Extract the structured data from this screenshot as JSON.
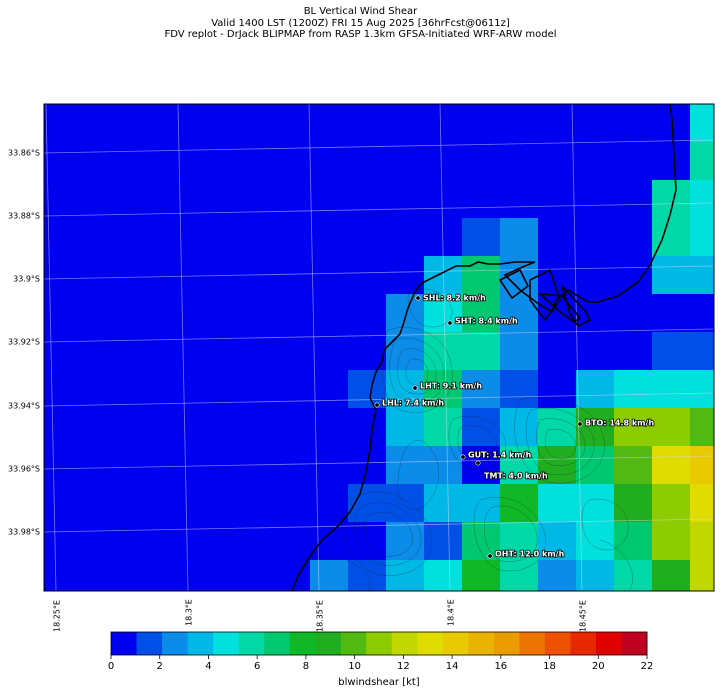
{
  "title": {
    "line1": "BL Vertical Wind Shear",
    "line2": "Valid 1400 LST (1200Z) FRI 15 Aug 2025 [36hrFcst@0611z]",
    "line3": "FDV replot - DrJack BLIPMAP from RASP 1.3km GFSA-Initiated WRF-ARW model"
  },
  "axes": {
    "lat_labels": [
      "33.86°S",
      "33.88°S",
      "33.9°S",
      "33.92°S",
      "33.94°S",
      "33.96°S",
      "33.98°S"
    ],
    "lon_labels": [
      "18.25°E",
      "18.3°E",
      "18.35°E",
      "18.4°E",
      "18.45°E"
    ]
  },
  "stations": [
    {
      "code": "SHL",
      "value": "8.2",
      "unit": "km/h",
      "label": "SHL: 8.2 km/h"
    },
    {
      "code": "SHT",
      "value": "8.4",
      "unit": "km/h",
      "label": "SHT: 8.4 km/h"
    },
    {
      "code": "LHT",
      "value": "9.1",
      "unit": "km/h",
      "label": "LHT: 9.1 km/h"
    },
    {
      "code": "LHL",
      "value": "7.4",
      "unit": "km/h",
      "label": "LHL: 7.4 km/h"
    },
    {
      "code": "BTO",
      "value": "14.8",
      "unit": "km/h",
      "label": "BTO: 14.8 km/h"
    },
    {
      "code": "GUT",
      "value": "1.4",
      "unit": "km/h",
      "label": "GUT: 1.4 km/h"
    },
    {
      "code": "TMT",
      "value": "4.0",
      "unit": "km/h",
      "label": "TMT: 4.0 km/h"
    },
    {
      "code": "OHT",
      "value": "12.0",
      "unit": "km/h",
      "label": "OHT: 12.0 km/h"
    }
  ],
  "colorbar": {
    "label": "blwindshear [kt]",
    "ticks": [
      "0",
      "2",
      "4",
      "6",
      "8",
      "10",
      "12",
      "14",
      "16",
      "18",
      "20",
      "22"
    ],
    "colors": [
      "#0000f0",
      "#0050e8",
      "#0a8ce8",
      "#00b8e6",
      "#00e0dc",
      "#00d8a8",
      "#00c870",
      "#10b828",
      "#20ae20",
      "#52b812",
      "#8ccc00",
      "#c0d800",
      "#e0dc00",
      "#e8ca00",
      "#e8b400",
      "#e89c00",
      "#ec7400",
      "#ee5200",
      "#e82800",
      "#e00000",
      "#c00020"
    ]
  },
  "chart_data": {
    "type": "heatmap",
    "variable": "blwindshear",
    "unit": "kt",
    "value_range": [
      0,
      22
    ],
    "lat_range": [
      "33.999°S",
      "33.848°S"
    ],
    "lon_range": [
      "18.246°E",
      "18.5°E"
    ],
    "grid_values": [
      [
        0,
        0,
        0,
        0,
        0,
        0,
        0,
        0,
        0,
        0,
        0,
        0,
        0,
        0,
        0,
        0,
        0,
        5,
        5
      ],
      [
        0,
        0,
        0,
        0,
        0,
        0,
        0,
        0,
        0,
        0,
        0,
        0,
        0,
        0,
        0,
        0,
        0,
        6,
        5
      ],
      [
        0,
        0,
        0,
        0,
        0,
        0,
        0,
        0,
        0,
        0,
        0,
        0,
        0,
        0,
        0,
        0,
        6,
        5,
        5
      ],
      [
        0,
        0,
        0,
        0,
        0,
        0,
        0,
        0,
        0,
        0,
        0,
        2,
        3,
        1,
        0,
        0,
        6,
        5,
        5
      ],
      [
        0,
        0,
        0,
        0,
        0,
        0,
        0,
        0,
        0,
        0,
        4,
        7,
        3,
        1,
        1,
        1,
        4,
        4,
        3
      ],
      [
        0,
        0,
        0,
        0,
        0,
        0,
        0,
        0,
        0,
        3,
        5,
        7,
        3,
        1,
        1,
        1,
        1,
        1,
        1
      ],
      [
        0,
        0,
        0,
        0,
        0,
        0,
        0,
        0,
        0,
        3,
        6,
        6,
        3,
        1,
        1,
        1,
        2,
        2,
        3
      ],
      [
        0,
        0,
        0,
        0,
        0,
        0,
        0,
        0,
        2,
        4,
        7,
        3,
        2,
        1,
        4,
        5,
        5,
        5,
        5
      ],
      [
        0,
        0,
        0,
        0,
        0,
        0,
        0,
        1,
        1,
        4,
        6,
        2,
        4,
        6,
        9,
        11,
        11,
        10,
        10
      ],
      [
        0,
        0,
        0,
        0,
        0,
        0,
        0,
        0,
        1,
        3,
        3,
        0,
        6,
        9,
        7,
        10,
        13,
        14,
        15
      ],
      [
        0,
        0,
        0,
        0,
        0,
        0,
        0,
        0,
        2,
        2,
        4,
        4,
        8,
        5,
        5,
        9,
        11,
        13,
        15
      ],
      [
        0,
        0,
        0,
        0,
        0,
        0,
        0,
        0,
        1,
        3,
        2,
        7,
        6,
        4,
        5,
        7,
        11,
        12,
        14
      ],
      [
        0,
        0,
        0,
        0,
        0,
        0,
        1,
        3,
        2,
        4,
        5,
        8,
        6,
        3,
        4,
        6,
        9,
        12,
        13
      ]
    ]
  }
}
